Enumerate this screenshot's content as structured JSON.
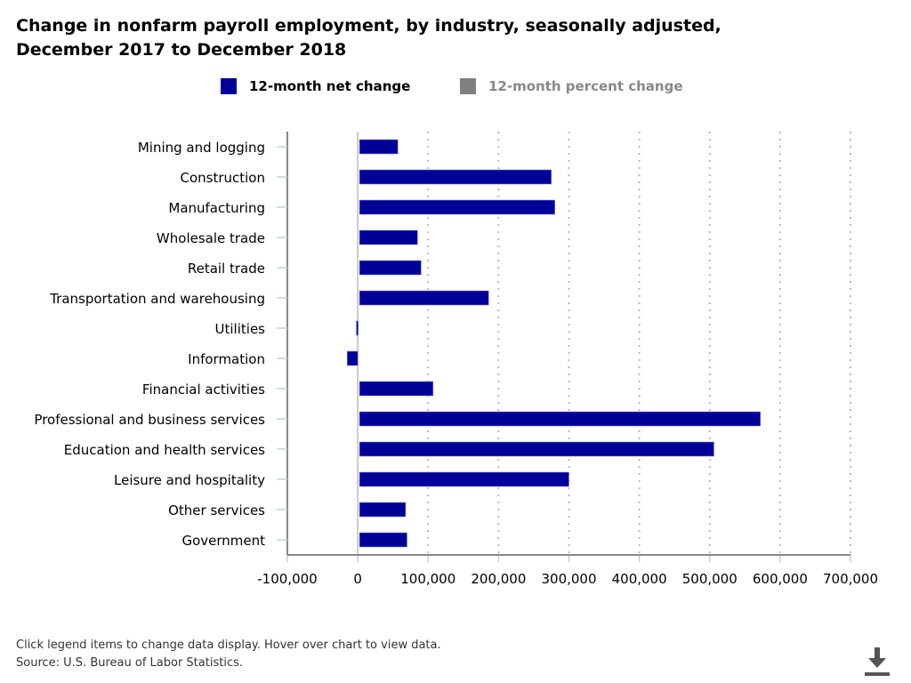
{
  "title": "Change in nonfarm payroll employment, by industry, seasonally adjusted, December 2017 to December 2018",
  "legend": [
    {
      "label": "12-month net change",
      "color": "#000099",
      "active": true
    },
    {
      "label": "12-month percent change",
      "color": "#808080",
      "active": false
    }
  ],
  "footer": {
    "note": "Click legend items to change data display. Hover over chart to view data.",
    "source": "Source: U.S. Bureau of Labor Statistics."
  },
  "download_icon": "download-icon",
  "chart_data": {
    "type": "bar",
    "orientation": "horizontal",
    "categories": [
      "Mining and logging",
      "Construction",
      "Manufacturing",
      "Wholesale trade",
      "Retail trade",
      "Transportation and warehousing",
      "Utilities",
      "Information",
      "Financial activities",
      "Professional and business services",
      "Education and health services",
      "Leisure and hospitality",
      "Other services",
      "Government"
    ],
    "series": [
      {
        "name": "12-month net change",
        "values": [
          57000,
          275000,
          280000,
          85000,
          90000,
          186000,
          -2000,
          -15000,
          107000,
          572000,
          506000,
          300000,
          68000,
          70000
        ]
      }
    ],
    "xlim": [
      -100000,
      700000
    ],
    "xticks": [
      -100000,
      0,
      100000,
      200000,
      300000,
      400000,
      500000,
      600000,
      700000
    ],
    "xtick_labels": [
      "-100,000",
      "0",
      "100,000",
      "200,000",
      "300,000",
      "400,000",
      "500,000",
      "600,000",
      "700,000"
    ],
    "grid": "vertical dotted",
    "bar_color": "#000099"
  }
}
